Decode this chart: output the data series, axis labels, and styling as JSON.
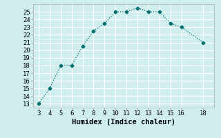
{
  "x": [
    3,
    4,
    5,
    6,
    7,
    8,
    9,
    10,
    11,
    12,
    13,
    14,
    15,
    16,
    18
  ],
  "y": [
    13,
    15,
    18,
    18,
    20.5,
    22.5,
    23.5,
    25,
    25,
    25.5,
    25,
    25,
    23.5,
    23,
    21
  ],
  "line_color": "#007070",
  "marker": "D",
  "marker_size": 2.5,
  "background_color": "#d0eeee",
  "grid_color": "#ffffff",
  "xlabel": "Humidex (Indice chaleur)",
  "xlim": [
    2.5,
    19.0
  ],
  "ylim": [
    12.5,
    26.0
  ],
  "xticks": [
    3,
    4,
    5,
    6,
    7,
    8,
    9,
    10,
    11,
    12,
    13,
    14,
    15,
    16,
    18
  ],
  "yticks": [
    13,
    14,
    15,
    16,
    17,
    18,
    19,
    20,
    21,
    22,
    23,
    24,
    25
  ],
  "tick_fontsize": 6.5,
  "xlabel_fontsize": 7.5,
  "xlabel_fontweight": "bold"
}
